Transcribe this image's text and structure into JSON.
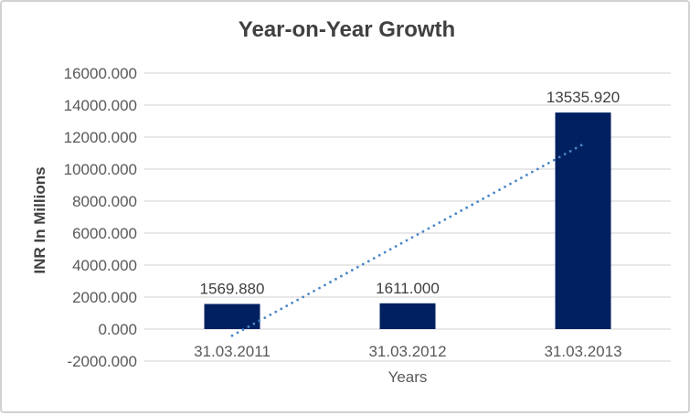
{
  "chart_data": {
    "type": "bar",
    "title": "Year-on-Year Growth",
    "xlabel": "Years",
    "ylabel": "INR In Millions",
    "categories": [
      "31.03.2011",
      "31.03.2012",
      "31.03.2013"
    ],
    "values": [
      1569.88,
      1611.0,
      13535.92
    ],
    "data_labels": [
      "1569.880",
      "1611.000",
      "13535.920"
    ],
    "y_ticks": [
      16000,
      14000,
      12000,
      10000,
      8000,
      6000,
      4000,
      2000,
      0,
      -2000
    ],
    "y_tick_labels": [
      "16000.000",
      "14000.000",
      "12000.000",
      "10000.000",
      "8000.000",
      "6000.000",
      "4000.000",
      "2000.000",
      "0.000",
      "-2000.000"
    ],
    "ylim": [
      -2000,
      16000
    ],
    "grid": true,
    "legend": "none",
    "trendline": {
      "type": "linear",
      "style": "dotted"
    },
    "colors": {
      "bar": "#002060",
      "trendline": "#4a86c8",
      "gridline": "#d9d9d9",
      "axis_line": "#d9d9d9",
      "title_text": "#404040",
      "tick_text": "#595959",
      "data_label_text": "#404040",
      "frame_border": "#d2d2d2",
      "background": "#ffffff"
    }
  }
}
